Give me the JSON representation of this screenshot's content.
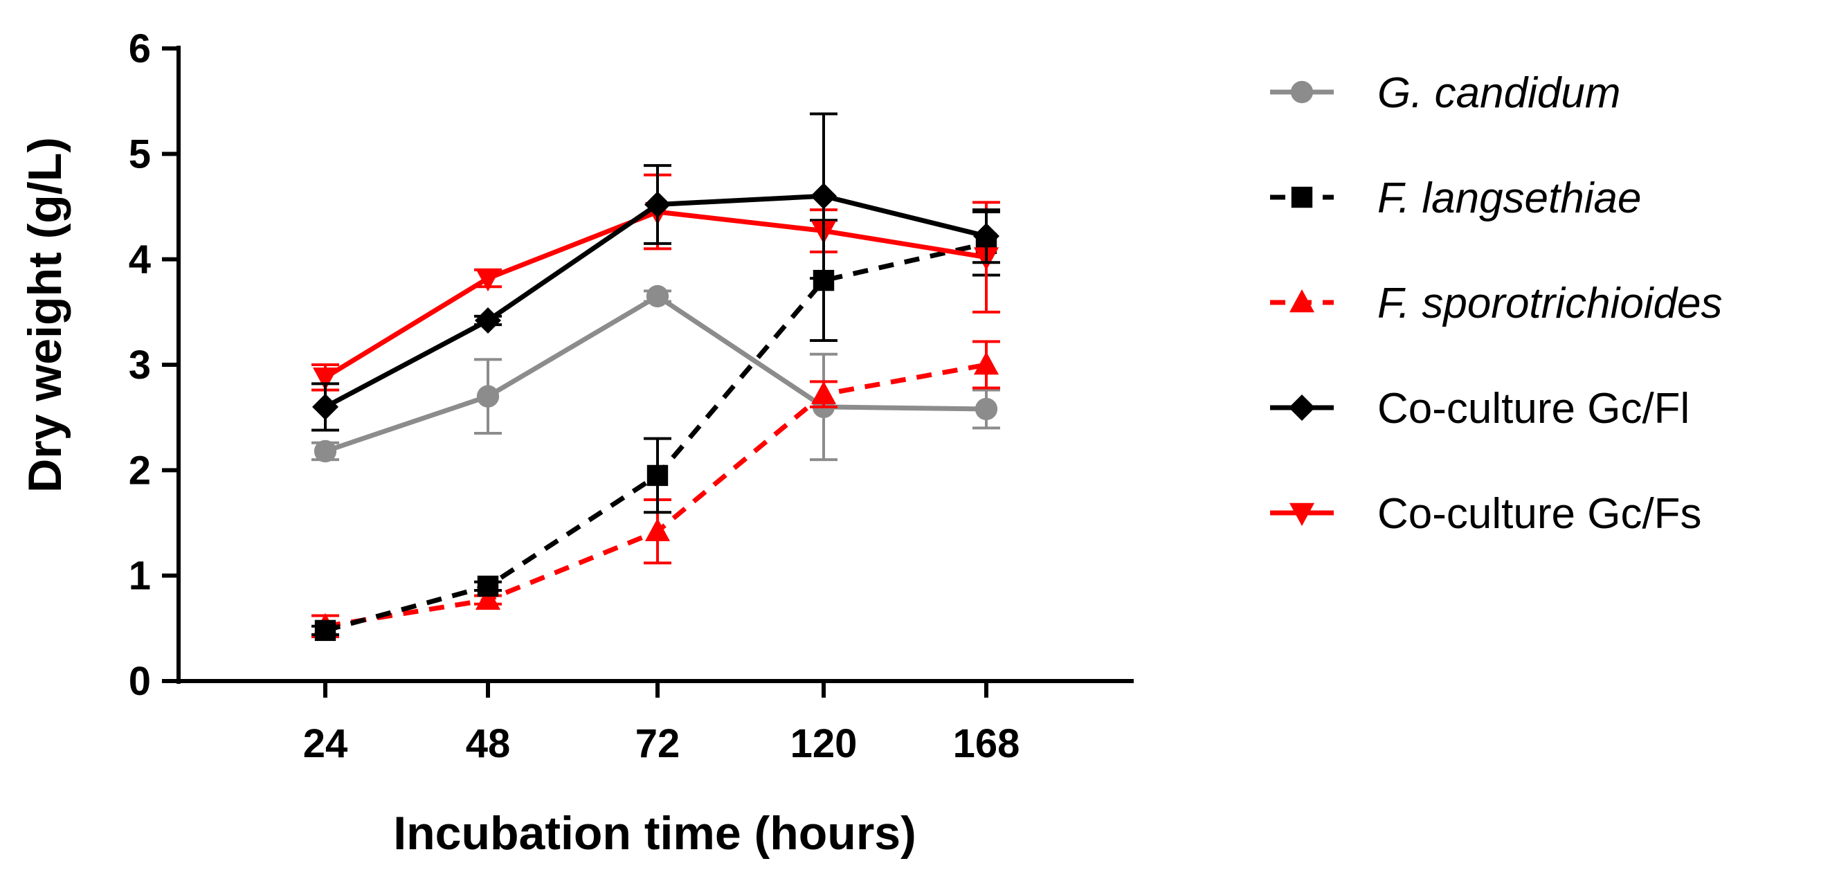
{
  "chart_data": {
    "type": "line",
    "title": "",
    "xlabel": "Incubation time (hours)",
    "ylabel": "Dry weight (g/L)",
    "categories": [
      "24",
      "48",
      "72",
      "120",
      "168"
    ],
    "ylim": [
      0,
      6
    ],
    "yticks": [
      "0",
      "1",
      "2",
      "3",
      "4",
      "5",
      "6"
    ],
    "grid": false,
    "legend_position": "right",
    "series": [
      {
        "name": "G. candidum",
        "italic": true,
        "color": "#8c8c8c",
        "dash": "solid",
        "marker": "circle",
        "values": [
          2.18,
          2.7,
          3.65,
          2.6,
          2.58
        ],
        "errors": [
          0.08,
          0.35,
          0.05,
          0.5,
          0.18
        ]
      },
      {
        "name": "F. langsethiae",
        "italic": true,
        "color": "#000000",
        "dash": "dashed",
        "marker": "square",
        "values": [
          0.48,
          0.9,
          1.95,
          3.8,
          4.15
        ],
        "errors": [
          0.04,
          0.04,
          0.35,
          0.57,
          0.3
        ]
      },
      {
        "name": "F. sporotrichioides",
        "italic": true,
        "color": "#ff0000",
        "dash": "dashed",
        "marker": "triangle-up",
        "values": [
          0.52,
          0.77,
          1.42,
          2.72,
          3.0
        ],
        "errors": [
          0.1,
          0.04,
          0.3,
          0.12,
          0.22
        ]
      },
      {
        "name": "Co-culture Gc/Fl",
        "italic": false,
        "color": "#000000",
        "dash": "solid",
        "marker": "diamond",
        "values": [
          2.6,
          3.42,
          4.52,
          4.6,
          4.22
        ],
        "errors": [
          0.22,
          0.04,
          0.37,
          0.78,
          0.25
        ]
      },
      {
        "name": "Co-culture Gc/Fs",
        "italic": false,
        "color": "#ff0000",
        "dash": "solid",
        "marker": "triangle-down",
        "values": [
          2.88,
          3.82,
          4.45,
          4.27,
          4.02
        ],
        "errors": [
          0.12,
          0.08,
          0.35,
          0.2,
          0.52
        ]
      }
    ]
  }
}
